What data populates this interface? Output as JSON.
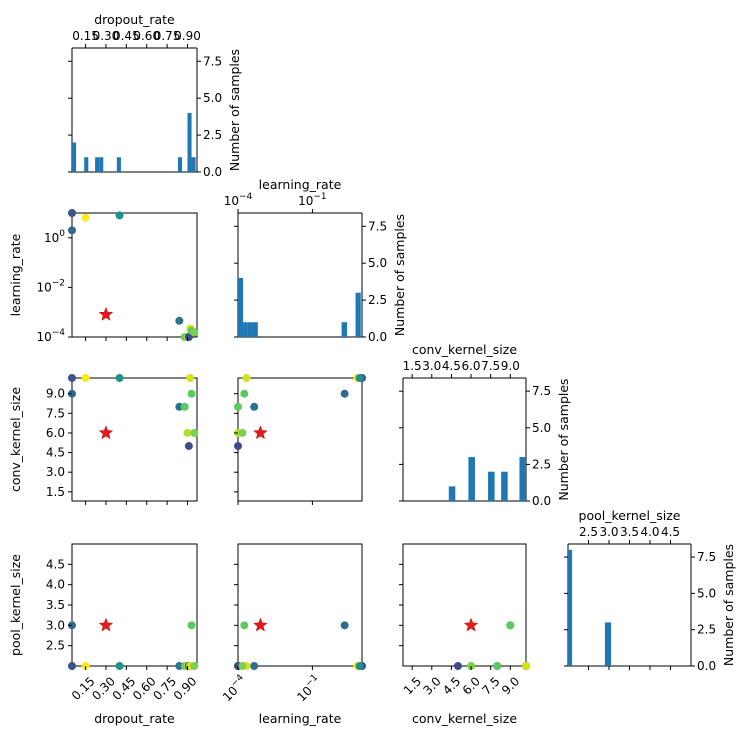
{
  "chart_data": {
    "type": "pair-plot",
    "title": "",
    "variables": [
      "dropout_rate",
      "learning_rate",
      "conv_kernel_size",
      "pool_kernel_size"
    ],
    "hist_ylabel": "Number of samples",
    "bar_color": "#1f77b4",
    "best_color": "#e41a1c",
    "axes": {
      "dropout_rate": {
        "scale": "linear",
        "range": [
          0.05,
          0.97
        ],
        "bottom_ticks": [
          0.15,
          0.3,
          0.45,
          0.6,
          0.75,
          0.9
        ],
        "bottom_tick_labels": [
          "0.15",
          "0.30",
          "0.45",
          "0.60",
          "0.75",
          "0.90"
        ],
        "top_tick_labels": [
          "0.15",
          "0.30",
          "0.45",
          "0.60",
          "0.75",
          "0.90"
        ]
      },
      "learning_rate": {
        "scale": "log",
        "range": [
          0.0001,
          10
        ],
        "bottom_ticks": [
          0.0001,
          0.1
        ],
        "bottom_tick_labels": [
          "10^-4",
          "10^-1"
        ],
        "top_tick_labels": [
          "10^-4",
          "10^-1"
        ],
        "left_ticks": [
          0.0001,
          0.01,
          1
        ],
        "left_tick_labels": [
          "10^-4",
          "10^-2",
          "10^0"
        ]
      },
      "conv_kernel_size": {
        "scale": "linear",
        "range": [
          0.8,
          10.2
        ],
        "ticks": [
          1.5,
          3.0,
          4.5,
          6.0,
          7.5,
          9.0
        ],
        "tick_labels": [
          "1.5",
          "3.0",
          "4.5",
          "6.0",
          "7.5",
          "9.0"
        ],
        "top_tick_labels": [
          "1.5",
          "3.0",
          "4.5",
          "6.0",
          "7.5",
          "9.0"
        ]
      },
      "pool_kernel_size": {
        "scale": "linear",
        "range": [
          2.0,
          5.0
        ],
        "ticks": [
          2.5,
          3.0,
          3.5,
          4.0,
          4.5
        ],
        "tick_labels": [
          "2.5",
          "3.0",
          "3.5",
          "4.0",
          "4.5"
        ],
        "top_tick_labels": [
          "2.5",
          "3.0",
          "3.5",
          "4.0",
          "4.5"
        ]
      }
    },
    "hist_yticks": [
      0.0,
      2.5,
      5.0,
      7.5
    ],
    "hist_ytick_labels": [
      "0.0",
      "2.5",
      "5.0",
      "7.5"
    ],
    "hist_ylim": [
      0,
      8.4
    ],
    "histograms": {
      "dropout_rate": [
        {
          "x0": 0.05,
          "x1": 0.08,
          "count": 2
        },
        {
          "x0": 0.14,
          "x1": 0.17,
          "count": 1
        },
        {
          "x0": 0.22,
          "x1": 0.25,
          "count": 1
        },
        {
          "x0": 0.25,
          "x1": 0.28,
          "count": 1
        },
        {
          "x0": 0.38,
          "x1": 0.41,
          "count": 1
        },
        {
          "x0": 0.83,
          "x1": 0.86,
          "count": 1
        },
        {
          "x0": 0.9,
          "x1": 0.93,
          "count": 4
        },
        {
          "x0": 0.93,
          "x1": 0.96,
          "count": 1
        }
      ],
      "learning_rate": [
        {
          "x0": 0.0001,
          "x1": 0.00016,
          "count": 4
        },
        {
          "x0": 0.00016,
          "x1": 0.00025,
          "count": 1
        },
        {
          "x0": 0.00025,
          "x1": 0.0004,
          "count": 1
        },
        {
          "x0": 0.0004,
          "x1": 0.00063,
          "count": 1
        },
        {
          "x0": 1.5,
          "x1": 2.5,
          "count": 1
        },
        {
          "x0": 5.5,
          "x1": 8.9,
          "count": 3
        }
      ],
      "conv_kernel_size": [
        {
          "x0": 4.3,
          "x1": 4.8,
          "count": 1
        },
        {
          "x0": 5.8,
          "x1": 6.3,
          "count": 3
        },
        {
          "x0": 7.3,
          "x1": 7.8,
          "count": 2
        },
        {
          "x0": 8.3,
          "x1": 8.8,
          "count": 2
        },
        {
          "x0": 9.7,
          "x1": 10.2,
          "count": 3
        }
      ],
      "pool_kernel_size": [
        {
          "x0": 2.0,
          "x1": 2.1,
          "count": 8
        },
        {
          "x0": 2.9,
          "x1": 3.05,
          "count": 3
        }
      ]
    },
    "samples": [
      {
        "dropout_rate": 0.05,
        "learning_rate": 2.0,
        "conv_kernel_size": 9.0,
        "pool_kernel_size": 3.0,
        "color": "#31688e"
      },
      {
        "dropout_rate": 0.05,
        "learning_rate": 10.0,
        "conv_kernel_size": 10.2,
        "pool_kernel_size": 2.0,
        "color": "#3b528b"
      },
      {
        "dropout_rate": 0.15,
        "learning_rate": 6.5,
        "conv_kernel_size": 10.2,
        "pool_kernel_size": 2.0,
        "color": "#fde725"
      },
      {
        "dropout_rate": 0.4,
        "learning_rate": 8.0,
        "conv_kernel_size": 10.2,
        "pool_kernel_size": 2.0,
        "color": "#21918c"
      },
      {
        "dropout_rate": 0.84,
        "learning_rate": 0.00045,
        "conv_kernel_size": 8.0,
        "pool_kernel_size": 2.0,
        "color": "#2c728e"
      },
      {
        "dropout_rate": 0.88,
        "learning_rate": 0.0001,
        "conv_kernel_size": 8.0,
        "pool_kernel_size": 2.0,
        "color": "#5ec962"
      },
      {
        "dropout_rate": 0.9,
        "learning_rate": 0.0001,
        "conv_kernel_size": 6.0,
        "pool_kernel_size": 2.0,
        "color": "#b5de2b"
      },
      {
        "dropout_rate": 0.91,
        "learning_rate": 0.0001,
        "conv_kernel_size": 5.0,
        "pool_kernel_size": 2.0,
        "color": "#3e4a89"
      },
      {
        "dropout_rate": 0.92,
        "learning_rate": 0.00022,
        "conv_kernel_size": 10.2,
        "pool_kernel_size": 2.0,
        "color": "#d8e219"
      },
      {
        "dropout_rate": 0.93,
        "learning_rate": 0.00018,
        "conv_kernel_size": 9.0,
        "pool_kernel_size": 3.0,
        "color": "#5ec962"
      },
      {
        "dropout_rate": 0.95,
        "learning_rate": 0.00015,
        "conv_kernel_size": 6.0,
        "pool_kernel_size": 2.0,
        "color": "#7ad151"
      }
    ],
    "best": {
      "dropout_rate": 0.3,
      "learning_rate": 0.0008,
      "conv_kernel_size": 6.0,
      "pool_kernel_size": 3.0,
      "marker": "star"
    }
  }
}
